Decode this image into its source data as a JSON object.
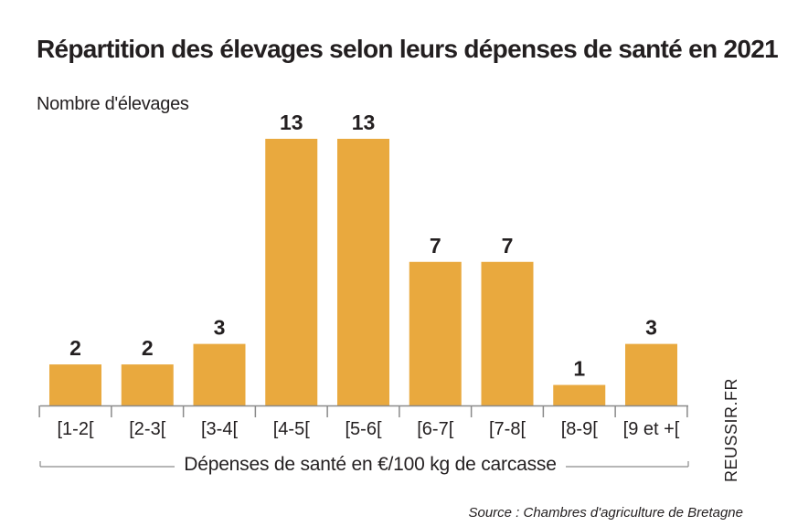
{
  "chart_data": {
    "type": "bar",
    "title": "Répartition des élevages selon leurs dépenses de santé en 2021",
    "ylabel": "Nombre d'élevages",
    "xlabel": "Dépenses de santé en €/100 kg de carcasse",
    "categories": [
      "[1-2[",
      "[2-3[",
      "[3-4[",
      "[4-5[",
      "[5-6[",
      "[6-7[",
      "[7-8[",
      "[8-9[",
      "[9 et +["
    ],
    "values": [
      2,
      2,
      3,
      13,
      13,
      7,
      7,
      1,
      3
    ],
    "data_labels": [
      "2",
      "2",
      "3",
      "13",
      "13",
      "7",
      "7",
      "1",
      "3"
    ],
    "ylim": [
      0,
      13
    ],
    "grid": false,
    "legend": "none",
    "bar_color": "#e9a93e",
    "axis_color": "#8a8a8a"
  },
  "watermark": "REUSSIR.FR",
  "source": "Source : Chambres d'agriculture de Bretagne"
}
